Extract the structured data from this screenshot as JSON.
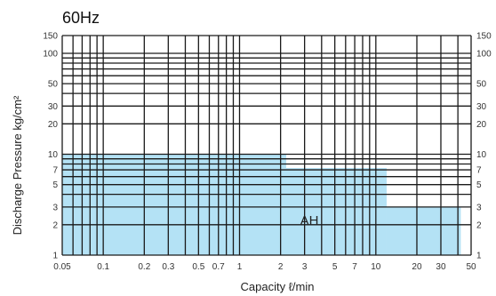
{
  "chart_data": {
    "type": "area",
    "title": "60Hz",
    "xlabel": "Capacity  ℓ/min",
    "ylabel": "Discharge Pressure  kg/cm²",
    "x_scale": "log",
    "y_scale": "log",
    "xlim": [
      0.05,
      50
    ],
    "ylim": [
      1,
      150
    ],
    "x_ticks": [
      0.05,
      0.1,
      0.2,
      0.3,
      0.5,
      0.7,
      1,
      2,
      3,
      5,
      7,
      10,
      20,
      30,
      50
    ],
    "x_tick_labels": [
      "0.05",
      "0.1",
      "0.2",
      "0.3",
      "0.5",
      "0.7",
      "1",
      "2",
      "3",
      "5",
      "7",
      "10",
      "20",
      "30",
      "50"
    ],
    "y_ticks": [
      1,
      2,
      3,
      5,
      7,
      10,
      20,
      30,
      50,
      100,
      150
    ],
    "y_tick_labels": [
      "1",
      "2",
      "3",
      "5",
      "7",
      "10",
      "20",
      "30",
      "50",
      "100",
      "150"
    ],
    "x_grid": [
      0.05,
      0.06,
      0.07,
      0.08,
      0.09,
      0.1,
      0.2,
      0.3,
      0.4,
      0.5,
      0.6,
      0.7,
      0.8,
      0.9,
      1,
      2,
      3,
      4,
      5,
      6,
      7,
      8,
      9,
      10,
      20,
      30,
      40,
      50
    ],
    "y_grid": [
      1,
      2,
      3,
      4,
      5,
      6,
      7,
      8,
      9,
      10,
      20,
      30,
      40,
      50,
      60,
      70,
      80,
      90,
      100,
      150
    ],
    "grid": true,
    "series": [
      {
        "name": "AH",
        "color": "#b4e2f5",
        "steps": [
          {
            "x_from": 0.05,
            "x_to": 2.2,
            "y": 10
          },
          {
            "x_from": 2.2,
            "x_to": 12,
            "y": 7.3
          },
          {
            "x_from": 12,
            "x_to": 42,
            "y": 3
          }
        ]
      }
    ],
    "region_label": {
      "text": "AH",
      "x": 2.2,
      "y": 2.2
    }
  }
}
